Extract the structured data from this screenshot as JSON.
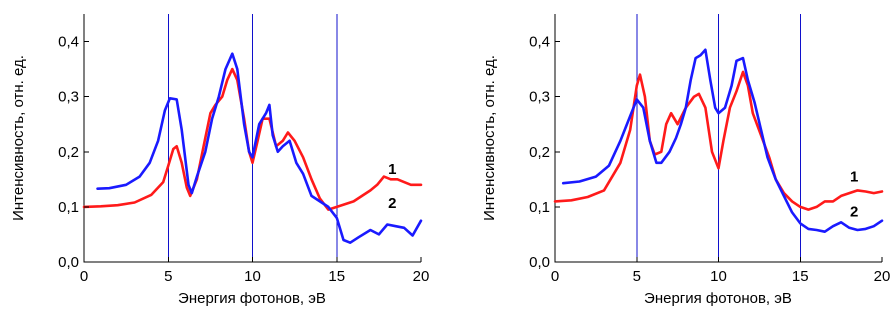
{
  "chart_data": [
    {
      "type": "line",
      "xlabel": "Энергия фотонов, эВ",
      "ylabel": "Интенсивность, отн. ед.",
      "xlim": [
        0,
        20
      ],
      "ylim": [
        0,
        0.45
      ],
      "xticks": [
        0,
        5,
        10,
        15,
        20
      ],
      "xtick_labels": [
        "0",
        "5",
        "10",
        "15",
        "20"
      ],
      "yticks": [
        0,
        0.1,
        0.2,
        0.3,
        0.4
      ],
      "ytick_labels": [
        "0,0",
        "0,1",
        "0,2",
        "0,3",
        "0,4"
      ],
      "vertical_lines": [
        5,
        10,
        15
      ],
      "vertical_line_color": "#1010cc",
      "grid": false,
      "series": [
        {
          "name": "1",
          "color": "#ff1a1a",
          "label_at": [
            18.3,
            0.16
          ],
          "points": [
            [
              0,
              0.1
            ],
            [
              1,
              0.101
            ],
            [
              2,
              0.103
            ],
            [
              3,
              0.108
            ],
            [
              4,
              0.122
            ],
            [
              4.7,
              0.145
            ],
            [
              5,
              0.175
            ],
            [
              5.3,
              0.205
            ],
            [
              5.5,
              0.21
            ],
            [
              5.8,
              0.18
            ],
            [
              6.1,
              0.135
            ],
            [
              6.3,
              0.12
            ],
            [
              6.7,
              0.15
            ],
            [
              7.1,
              0.21
            ],
            [
              7.5,
              0.27
            ],
            [
              7.8,
              0.285
            ],
            [
              8.2,
              0.3
            ],
            [
              8.5,
              0.33
            ],
            [
              8.8,
              0.35
            ],
            [
              9.1,
              0.33
            ],
            [
              9.5,
              0.26
            ],
            [
              9.8,
              0.2
            ],
            [
              10,
              0.18
            ],
            [
              10.3,
              0.22
            ],
            [
              10.6,
              0.26
            ],
            [
              11.0,
              0.26
            ],
            [
              11.4,
              0.21
            ],
            [
              11.8,
              0.22
            ],
            [
              12.1,
              0.235
            ],
            [
              12.5,
              0.22
            ],
            [
              13,
              0.19
            ],
            [
              13.5,
              0.15
            ],
            [
              14,
              0.115
            ],
            [
              14.5,
              0.095
            ],
            [
              15,
              0.1
            ],
            [
              15.5,
              0.105
            ],
            [
              16,
              0.11
            ],
            [
              16.5,
              0.12
            ],
            [
              17,
              0.13
            ],
            [
              17.4,
              0.14
            ],
            [
              17.8,
              0.155
            ],
            [
              18.2,
              0.15
            ],
            [
              18.6,
              0.15
            ],
            [
              19,
              0.145
            ],
            [
              19.4,
              0.14
            ],
            [
              20,
              0.14
            ]
          ]
        },
        {
          "name": "2",
          "color": "#1a1aff",
          "label_at": [
            18.3,
            0.098
          ],
          "points": [
            [
              0.8,
              0.133
            ],
            [
              1.5,
              0.134
            ],
            [
              2.5,
              0.14
            ],
            [
              3.3,
              0.155
            ],
            [
              3.9,
              0.18
            ],
            [
              4.4,
              0.22
            ],
            [
              4.8,
              0.275
            ],
            [
              5.1,
              0.297
            ],
            [
              5.5,
              0.295
            ],
            [
              5.8,
              0.24
            ],
            [
              6.2,
              0.14
            ],
            [
              6.4,
              0.125
            ],
            [
              6.7,
              0.155
            ],
            [
              7.2,
              0.2
            ],
            [
              7.6,
              0.26
            ],
            [
              8.0,
              0.3
            ],
            [
              8.4,
              0.35
            ],
            [
              8.8,
              0.378
            ],
            [
              9.1,
              0.35
            ],
            [
              9.5,
              0.25
            ],
            [
              9.8,
              0.2
            ],
            [
              10.0,
              0.19
            ],
            [
              10.4,
              0.25
            ],
            [
              10.8,
              0.27
            ],
            [
              11.0,
              0.285
            ],
            [
              11.2,
              0.23
            ],
            [
              11.5,
              0.2
            ],
            [
              11.8,
              0.21
            ],
            [
              12.2,
              0.22
            ],
            [
              12.6,
              0.18
            ],
            [
              13.0,
              0.16
            ],
            [
              13.5,
              0.12
            ],
            [
              14.0,
              0.11
            ],
            [
              14.5,
              0.1
            ],
            [
              15.0,
              0.08
            ],
            [
              15.4,
              0.04
            ],
            [
              15.8,
              0.035
            ],
            [
              16.3,
              0.045
            ],
            [
              17.0,
              0.058
            ],
            [
              17.5,
              0.05
            ],
            [
              18.0,
              0.068
            ],
            [
              18.5,
              0.065
            ],
            [
              19.0,
              0.062
            ],
            [
              19.5,
              0.048
            ],
            [
              20,
              0.075
            ]
          ]
        }
      ]
    },
    {
      "type": "line",
      "xlabel": "Энергия фотонов, эВ",
      "ylabel": "Интенсивность, отн. ед.",
      "xlim": [
        0,
        20
      ],
      "ylim": [
        0,
        0.45
      ],
      "xticks": [
        0,
        5,
        10,
        15,
        20
      ],
      "xtick_labels": [
        "0",
        "5",
        "10",
        "15",
        "20"
      ],
      "yticks": [
        0,
        0.1,
        0.2,
        0.3,
        0.4
      ],
      "ytick_labels": [
        "0,0",
        "0,1",
        "0,2",
        "0,3",
        "0,4"
      ],
      "vertical_lines": [
        5,
        10,
        15
      ],
      "vertical_line_color": "#1010cc",
      "grid": false,
      "series": [
        {
          "name": "1",
          "color": "#ff1a1a",
          "label_at": [
            18.3,
            0.146
          ],
          "points": [
            [
              0,
              0.11
            ],
            [
              1,
              0.112
            ],
            [
              2,
              0.118
            ],
            [
              3,
              0.13
            ],
            [
              4,
              0.18
            ],
            [
              4.6,
              0.24
            ],
            [
              5.0,
              0.32
            ],
            [
              5.2,
              0.34
            ],
            [
              5.5,
              0.3
            ],
            [
              5.8,
              0.22
            ],
            [
              6.1,
              0.195
            ],
            [
              6.5,
              0.2
            ],
            [
              6.8,
              0.25
            ],
            [
              7.1,
              0.27
            ],
            [
              7.5,
              0.25
            ],
            [
              8.0,
              0.28
            ],
            [
              8.5,
              0.3
            ],
            [
              8.8,
              0.305
            ],
            [
              9.2,
              0.28
            ],
            [
              9.6,
              0.2
            ],
            [
              10.0,
              0.17
            ],
            [
              10.3,
              0.22
            ],
            [
              10.7,
              0.28
            ],
            [
              11.1,
              0.31
            ],
            [
              11.5,
              0.345
            ],
            [
              11.8,
              0.32
            ],
            [
              12.1,
              0.27
            ],
            [
              12.6,
              0.23
            ],
            [
              13.1,
              0.19
            ],
            [
              13.5,
              0.15
            ],
            [
              14.0,
              0.125
            ],
            [
              14.5,
              0.11
            ],
            [
              15.0,
              0.1
            ],
            [
              15.5,
              0.095
            ],
            [
              16.0,
              0.1
            ],
            [
              16.5,
              0.11
            ],
            [
              17.0,
              0.11
            ],
            [
              17.5,
              0.12
            ],
            [
              18.0,
              0.125
            ],
            [
              18.5,
              0.13
            ],
            [
              19.0,
              0.128
            ],
            [
              19.5,
              0.125
            ],
            [
              20,
              0.128
            ]
          ]
        },
        {
          "name": "2",
          "color": "#1a1aff",
          "label_at": [
            18.3,
            0.083
          ],
          "points": [
            [
              0.5,
              0.143
            ],
            [
              1.5,
              0.146
            ],
            [
              2.5,
              0.155
            ],
            [
              3.3,
              0.175
            ],
            [
              4.0,
              0.22
            ],
            [
              4.6,
              0.265
            ],
            [
              5.0,
              0.295
            ],
            [
              5.4,
              0.28
            ],
            [
              5.8,
              0.22
            ],
            [
              6.2,
              0.18
            ],
            [
              6.5,
              0.18
            ],
            [
              7.0,
              0.2
            ],
            [
              7.4,
              0.225
            ],
            [
              7.7,
              0.25
            ],
            [
              8.0,
              0.28
            ],
            [
              8.3,
              0.33
            ],
            [
              8.6,
              0.37
            ],
            [
              8.9,
              0.375
            ],
            [
              9.2,
              0.385
            ],
            [
              9.5,
              0.33
            ],
            [
              9.8,
              0.28
            ],
            [
              10.0,
              0.27
            ],
            [
              10.4,
              0.28
            ],
            [
              10.8,
              0.32
            ],
            [
              11.1,
              0.365
            ],
            [
              11.5,
              0.37
            ],
            [
              11.8,
              0.33
            ],
            [
              12.2,
              0.29
            ],
            [
              12.6,
              0.24
            ],
            [
              13.0,
              0.19
            ],
            [
              13.5,
              0.15
            ],
            [
              14.0,
              0.12
            ],
            [
              14.5,
              0.09
            ],
            [
              15.0,
              0.07
            ],
            [
              15.5,
              0.06
            ],
            [
              16.0,
              0.058
            ],
            [
              16.5,
              0.055
            ],
            [
              17.0,
              0.065
            ],
            [
              17.5,
              0.072
            ],
            [
              18.0,
              0.062
            ],
            [
              18.5,
              0.058
            ],
            [
              19.0,
              0.06
            ],
            [
              19.5,
              0.065
            ],
            [
              20,
              0.075
            ]
          ]
        }
      ]
    }
  ]
}
